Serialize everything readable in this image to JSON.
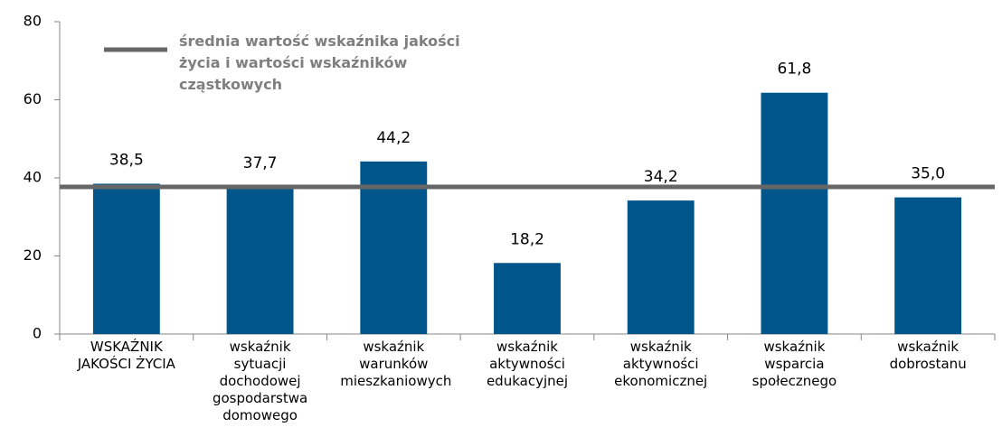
{
  "chart_data": {
    "type": "bar",
    "categories": [
      "WSKAŹNIK JAKOŚCI ŻYCIA",
      "wskaźnik sytuacji dochodowej gospodarstwa domowego",
      "wskaźnik warunków mieszkaniowych",
      "wskaźnik aktywności edukacyjnej",
      "wskaźnik aktywności ekonomicznej",
      "wskaźnik wsparcia społecznego",
      "wskaźnik dobrostanu"
    ],
    "values": [
      38.5,
      37.7,
      44.2,
      18.2,
      34.2,
      61.8,
      35.0
    ],
    "value_labels": [
      "38,5",
      "37,7",
      "44,2",
      "18,2",
      "34,2",
      "61,8",
      "35,0"
    ],
    "color": "#00558a",
    "reference_line": {
      "name": "średnia wartość wskaźnika jakości życia i wartości wskaźników cząstkowych",
      "value": 37.7,
      "color": "#666666"
    },
    "ylim": [
      0,
      80
    ],
    "yticks": [
      0,
      20,
      40,
      60,
      80
    ],
    "grid": false
  }
}
